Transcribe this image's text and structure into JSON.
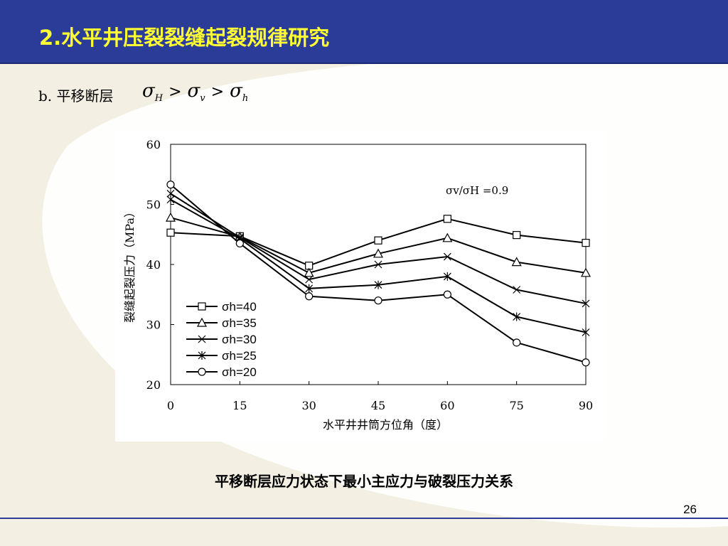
{
  "slide": {
    "title": "2.水平井压裂裂缝起裂规律研究",
    "subtitle": "b. 平移断层",
    "formula": {
      "s1": "H",
      "s2": "v",
      "s3": "h",
      "gt": ">"
    },
    "caption": "平移断层应力状态下最小主应力与破裂压力关系",
    "page_number": "26"
  },
  "colors": {
    "title_bar": "#2b3c98",
    "title_text": "#ffff33",
    "background": "#f3f0e3",
    "swoosh": "#ffffff"
  },
  "chart_data": {
    "type": "line",
    "xlabel": "水平井井筒方位角（度）",
    "ylabel": "裂缝起裂压力（MPa）",
    "annotation": "σv/σH =0.9",
    "xlim": [
      0,
      90
    ],
    "ylim": [
      20,
      60
    ],
    "x_ticks": [
      "0",
      "15",
      "30",
      "45",
      "60",
      "75",
      "90"
    ],
    "y_ticks": [
      "20",
      "30",
      "40",
      "50",
      "60"
    ],
    "x": [
      0,
      15,
      30,
      45,
      60,
      75,
      90
    ],
    "legend_position": "lower-left",
    "series": [
      {
        "name": "σh=40",
        "marker": "square",
        "values": [
          45.3,
          44.7,
          39.8,
          44.0,
          47.6,
          44.9,
          43.6
        ]
      },
      {
        "name": "σh=35",
        "marker": "triangle",
        "values": [
          47.8,
          44.6,
          38.6,
          41.8,
          44.4,
          40.4,
          38.6
        ]
      },
      {
        "name": "σh=30",
        "marker": "x",
        "values": [
          51.8,
          44.5,
          37.5,
          40.0,
          41.3,
          35.8,
          33.5
        ]
      },
      {
        "name": "σh=25",
        "marker": "asterisk",
        "values": [
          50.8,
          44.3,
          36.0,
          36.6,
          38.0,
          31.3,
          28.7
        ]
      },
      {
        "name": "σh=20",
        "marker": "circle",
        "values": [
          53.3,
          43.5,
          34.7,
          34.0,
          35.0,
          27.0,
          23.7
        ]
      }
    ]
  }
}
